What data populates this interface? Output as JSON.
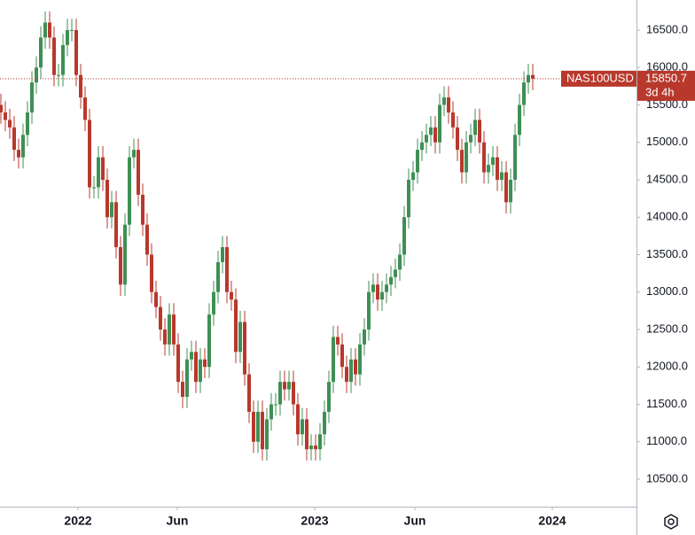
{
  "chart_data": {
    "type": "candlestick",
    "symbol": "NAS100USD",
    "last_price": 15850.7,
    "countdown": "3d 4h",
    "up_color": "#3f8f55",
    "down_color": "#b8382c",
    "ylim": [
      10133,
      16902
    ],
    "yticks": [
      {
        "value": 10500,
        "label": "10500.0"
      },
      {
        "value": 11000,
        "label": "11000.0"
      },
      {
        "value": 11500,
        "label": "11500.0"
      },
      {
        "value": 12000,
        "label": "12000.0"
      },
      {
        "value": 12500,
        "label": "12500.0"
      },
      {
        "value": 13000,
        "label": "13000.0"
      },
      {
        "value": 13500,
        "label": "13500.0"
      },
      {
        "value": 14000,
        "label": "14000.0"
      },
      {
        "value": 14500,
        "label": "14500.0"
      },
      {
        "value": 15000,
        "label": "15000.0"
      },
      {
        "value": 15500,
        "label": "15500.0"
      },
      {
        "value": 16000,
        "label": "16000.0"
      },
      {
        "value": 16500,
        "label": "16500.0"
      }
    ],
    "xlim": [
      -0.2,
      143.4
    ],
    "xticks": [
      {
        "value": 17.4,
        "label": "2022"
      },
      {
        "value": 39.8,
        "label": "Jun"
      },
      {
        "value": 70.8,
        "label": "2023"
      },
      {
        "value": 93.4,
        "label": "Jun"
      },
      {
        "value": 124.4,
        "label": "2024"
      }
    ],
    "open": [
      15500,
      15400,
      15300,
      15200,
      14900,
      14800,
      15100,
      15400,
      15800,
      16000,
      16400,
      16600,
      16400,
      15900,
      15900,
      16300,
      16500,
      16500,
      15900,
      15600,
      15300,
      14400,
      14400,
      14800,
      14500,
      14000,
      14200,
      13600,
      13100,
      13900,
      14800,
      14900,
      14300,
      13900,
      13500,
      13000,
      12800,
      12500,
      12300,
      12700,
      12300,
      11800,
      11600,
      12100,
      12200,
      11800,
      12100,
      12000,
      12700,
      13000,
      13400,
      13600,
      13000,
      12900,
      12200,
      12600,
      11900,
      11400,
      11000,
      11400,
      10900,
      11300,
      11500,
      11500,
      11800,
      11700,
      11800,
      11500,
      11100,
      11300,
      10900,
      10950,
      10900,
      11100,
      11400,
      11800,
      12400,
      12300,
      12000,
      11800,
      12100,
      11900,
      12300,
      12500,
      13000,
      13100,
      12900,
      13000,
      13100,
      13200,
      13300,
      13500,
      14000,
      14500,
      14600,
      14900,
      15000,
      15100,
      15200,
      15000,
      15500,
      15600,
      15400,
      15200,
      14900,
      14600,
      15000,
      15100,
      15300,
      15000,
      14600,
      14700,
      14800,
      14500,
      14600,
      14200,
      14500,
      15100,
      15500,
      15800,
      15900
    ],
    "high": [
      15650,
      15550,
      15450,
      15350,
      15050,
      15250,
      15550,
      15950,
      16150,
      16550,
      16750,
      16750,
      16550,
      16050,
      16450,
      16650,
      16650,
      16650,
      16050,
      15750,
      15450,
      14550,
      14950,
      14950,
      14650,
      14350,
      14350,
      13750,
      14050,
      14950,
      15050,
      15050,
      14450,
      14050,
      13650,
      13150,
      12950,
      12650,
      12850,
      12850,
      12450,
      11950,
      12250,
      12350,
      12350,
      12250,
      12250,
      12850,
      13150,
      13550,
      13750,
      13750,
      13150,
      13050,
      12750,
      12750,
      12050,
      11550,
      11550,
      11550,
      11450,
      11650,
      11650,
      11950,
      11950,
      11950,
      11950,
      11650,
      11450,
      11450,
      11100,
      11100,
      11250,
      11550,
      11950,
      12550,
      12550,
      12450,
      12150,
      12250,
      12250,
      12450,
      12650,
      13150,
      13250,
      13250,
      13150,
      13250,
      13350,
      13450,
      13650,
      14150,
      14650,
      14750,
      15050,
      15150,
      15250,
      15350,
      15350,
      15650,
      15750,
      15750,
      15550,
      15350,
      15050,
      15150,
      15250,
      15450,
      15450,
      15150,
      14850,
      14950,
      14950,
      14750,
      14750,
      14650,
      15250,
      15650,
      15950,
      16050,
      16050
    ],
    "low": [
      15250,
      15150,
      15050,
      14750,
      14650,
      14650,
      14950,
      15250,
      15650,
      15850,
      16250,
      16250,
      15750,
      15750,
      15750,
      16150,
      16350,
      15750,
      15450,
      15150,
      14250,
      14250,
      14250,
      14350,
      13850,
      13850,
      13450,
      12950,
      12950,
      13750,
      14650,
      14150,
      13750,
      13350,
      12850,
      12650,
      12350,
      12150,
      12150,
      12150,
      11650,
      11450,
      11450,
      11950,
      11650,
      11650,
      11850,
      11850,
      12550,
      12850,
      13250,
      12850,
      12750,
      12050,
      12050,
      11750,
      11250,
      10850,
      10850,
      10750,
      10750,
      11150,
      11350,
      11350,
      11550,
      11550,
      11350,
      10950,
      10950,
      10750,
      10750,
      10750,
      10750,
      10950,
      11250,
      11650,
      12150,
      11850,
      11650,
      11650,
      11750,
      11750,
      12150,
      12350,
      12850,
      12750,
      12750,
      12850,
      12950,
      13050,
      13150,
      13350,
      13850,
      14350,
      14450,
      14750,
      14850,
      14950,
      14850,
      14850,
      15350,
      15250,
      15050,
      14750,
      14450,
      14450,
      14850,
      14950,
      14850,
      14450,
      14450,
      14550,
      14350,
      14350,
      14050,
      14050,
      14350,
      14950,
      15350,
      15650,
      15700
    ],
    "close": [
      15400,
      15300,
      15200,
      14900,
      14800,
      15100,
      15400,
      15800,
      16000,
      16400,
      16600,
      16400,
      15900,
      15900,
      16300,
      16500,
      16500,
      15900,
      15600,
      15300,
      14400,
      14400,
      14800,
      14500,
      14000,
      14200,
      13600,
      13100,
      13900,
      14800,
      14900,
      14300,
      13900,
      13500,
      13000,
      12800,
      12500,
      12300,
      12700,
      12300,
      11800,
      11600,
      12100,
      12200,
      11800,
      12100,
      12000,
      12700,
      13000,
      13400,
      13600,
      13000,
      12900,
      12200,
      12600,
      11900,
      11400,
      11000,
      11400,
      10900,
      11300,
      11500,
      11500,
      11800,
      11700,
      11800,
      11500,
      11100,
      11300,
      10900,
      10950,
      10900,
      11100,
      11400,
      11800,
      12400,
      12300,
      12000,
      11800,
      12100,
      11900,
      12300,
      12500,
      13000,
      13100,
      12900,
      13000,
      13100,
      13200,
      13300,
      13500,
      14000,
      14500,
      14600,
      14900,
      15000,
      15100,
      15200,
      15000,
      15500,
      15600,
      15400,
      15200,
      14900,
      14600,
      15000,
      15100,
      15300,
      15000,
      14600,
      14700,
      14800,
      14500,
      14600,
      14200,
      14500,
      15100,
      15500,
      15800,
      15900,
      15850.7
    ]
  }
}
